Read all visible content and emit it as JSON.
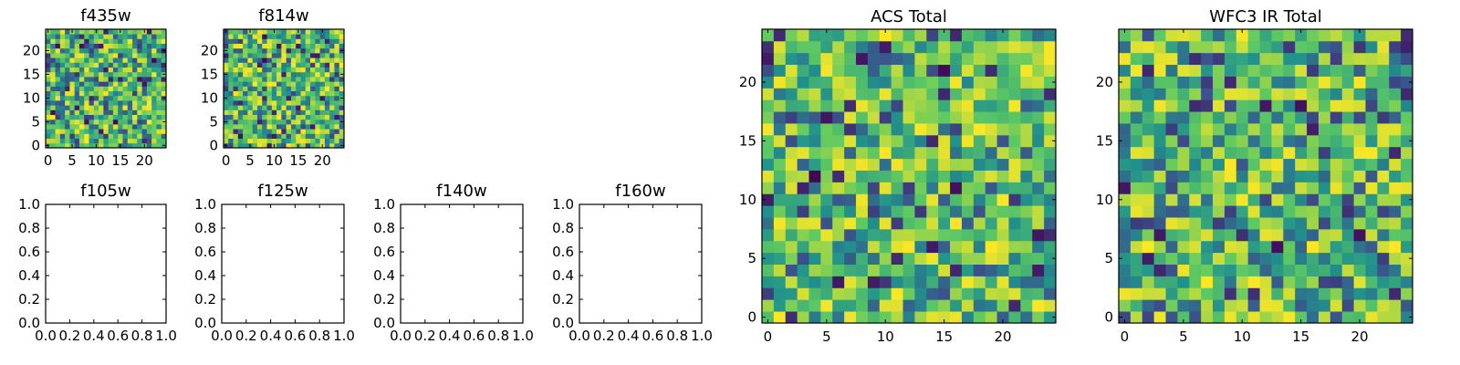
{
  "figure": {
    "colormap": [
      "#440154",
      "#3b528b",
      "#21918c",
      "#5ec962",
      "#fde725"
    ]
  },
  "chart_data": [
    {
      "id": "f435w",
      "type": "heatmap",
      "title": "f435w",
      "shape": [
        25,
        25
      ],
      "xlim": [
        -0.5,
        24.5
      ],
      "ylim": [
        -0.5,
        24.5
      ],
      "xticks": [
        0,
        5,
        10,
        15,
        20
      ],
      "yticks": [
        0,
        5,
        10,
        15,
        20
      ],
      "xtick_labels": [
        "0",
        "5",
        "10",
        "15",
        "20"
      ],
      "ytick_labels": [
        "0",
        "5",
        "10",
        "15",
        "20"
      ],
      "value_range": [
        0,
        1
      ],
      "seed": 11
    },
    {
      "id": "f814w",
      "type": "heatmap",
      "title": "f814w",
      "shape": [
        25,
        25
      ],
      "xlim": [
        -0.5,
        24.5
      ],
      "ylim": [
        -0.5,
        24.5
      ],
      "xticks": [
        0,
        5,
        10,
        15,
        20
      ],
      "yticks": [
        0,
        5,
        10,
        15,
        20
      ],
      "xtick_labels": [
        "0",
        "5",
        "10",
        "15",
        "20"
      ],
      "ytick_labels": [
        "0",
        "5",
        "10",
        "15",
        "20"
      ],
      "value_range": [
        0,
        1
      ],
      "seed": 23
    },
    {
      "id": "f105w",
      "type": "scatter",
      "title": "f105w",
      "series": [],
      "xlim": [
        0,
        1
      ],
      "ylim": [
        0,
        1
      ],
      "xticks": [
        0,
        0.2,
        0.4,
        0.6,
        0.8,
        1
      ],
      "yticks": [
        0,
        0.2,
        0.4,
        0.6,
        0.8,
        1
      ],
      "xtick_labels": [
        "0.0",
        "0.2",
        "0.4",
        "0.6",
        "0.8",
        "1.0"
      ],
      "ytick_labels": [
        "0.0",
        "0.2",
        "0.4",
        "0.6",
        "0.8",
        "1.0"
      ]
    },
    {
      "id": "f125w",
      "type": "scatter",
      "title": "f125w",
      "series": [],
      "xlim": [
        0,
        1
      ],
      "ylim": [
        0,
        1
      ],
      "xticks": [
        0,
        0.2,
        0.4,
        0.6,
        0.8,
        1
      ],
      "yticks": [
        0,
        0.2,
        0.4,
        0.6,
        0.8,
        1
      ],
      "xtick_labels": [
        "0.0",
        "0.2",
        "0.4",
        "0.6",
        "0.8",
        "1.0"
      ],
      "ytick_labels": [
        "0.0",
        "0.2",
        "0.4",
        "0.6",
        "0.8",
        "1.0"
      ]
    },
    {
      "id": "f140w",
      "type": "scatter",
      "title": "f140w",
      "series": [],
      "xlim": [
        0,
        1
      ],
      "ylim": [
        0,
        1
      ],
      "xticks": [
        0,
        0.2,
        0.4,
        0.6,
        0.8,
        1
      ],
      "yticks": [
        0,
        0.2,
        0.4,
        0.6,
        0.8,
        1
      ],
      "xtick_labels": [
        "0.0",
        "0.2",
        "0.4",
        "0.6",
        "0.8",
        "1.0"
      ],
      "ytick_labels": [
        "0.0",
        "0.2",
        "0.4",
        "0.6",
        "0.8",
        "1.0"
      ]
    },
    {
      "id": "f160w",
      "type": "scatter",
      "title": "f160w",
      "series": [],
      "xlim": [
        0,
        1
      ],
      "ylim": [
        0,
        1
      ],
      "xticks": [
        0,
        0.2,
        0.4,
        0.6,
        0.8,
        1
      ],
      "yticks": [
        0,
        0.2,
        0.4,
        0.6,
        0.8,
        1
      ],
      "xtick_labels": [
        "0.0",
        "0.2",
        "0.4",
        "0.6",
        "0.8",
        "1.0"
      ],
      "ytick_labels": [
        "0.0",
        "0.2",
        "0.4",
        "0.6",
        "0.8",
        "1.0"
      ]
    },
    {
      "id": "acs-total",
      "type": "heatmap",
      "title": "ACS Total",
      "shape": [
        25,
        25
      ],
      "xlim": [
        -0.5,
        24.5
      ],
      "ylim": [
        -0.5,
        24.5
      ],
      "xticks": [
        0,
        5,
        10,
        15,
        20
      ],
      "yticks": [
        0,
        5,
        10,
        15,
        20
      ],
      "xtick_labels": [
        "0",
        "5",
        "10",
        "15",
        "20"
      ],
      "ytick_labels": [
        "0",
        "5",
        "10",
        "15",
        "20"
      ],
      "value_range": [
        0,
        1
      ],
      "seed": 37
    },
    {
      "id": "wfc3-ir-total",
      "type": "heatmap",
      "title": "WFC3 IR Total",
      "shape": [
        25,
        25
      ],
      "xlim": [
        -0.5,
        24.5
      ],
      "ylim": [
        -0.5,
        24.5
      ],
      "xticks": [
        0,
        5,
        10,
        15,
        20
      ],
      "yticks": [
        0,
        5,
        10,
        15,
        20
      ],
      "xtick_labels": [
        "0",
        "5",
        "10",
        "15",
        "20"
      ],
      "ytick_labels": [
        "0",
        "5",
        "10",
        "15",
        "20"
      ],
      "value_range": [
        0,
        1
      ],
      "seed": 53
    }
  ]
}
